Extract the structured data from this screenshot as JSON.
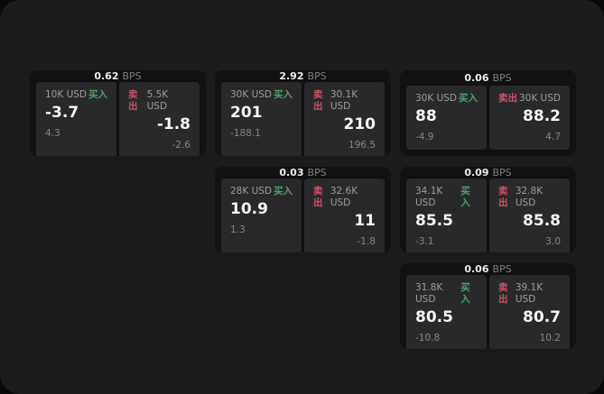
{
  "labels": {
    "buy": "买入",
    "sell": "卖出",
    "bps_suffix": "BPS"
  },
  "colors": {
    "panel_background": "#1b1b1d",
    "card_background": "#111113",
    "quote_panel_background": "#29292b",
    "buy_green": "#4fa06b",
    "sell_red": "#d34f66",
    "primary_text": "#f5f5f5",
    "secondary_text": "#8f8f8f"
  },
  "cards": [
    {
      "bps": "0.62",
      "buy": {
        "amount": "10K USD",
        "value": "-3.7",
        "change": "4.3"
      },
      "sell": {
        "amount": "5.5K USD",
        "value": "-1.8",
        "change": "-2.6"
      }
    },
    {
      "bps": "2.92",
      "buy": {
        "amount": "30K USD",
        "value": "201",
        "change": "-188.1"
      },
      "sell": {
        "amount": "30.1K USD",
        "value": "210",
        "change": "196.5"
      }
    },
    {
      "bps": "0.06",
      "buy": {
        "amount": "30K USD",
        "value": "88",
        "change": "-4.9"
      },
      "sell": {
        "amount": "30K USD",
        "value": "88.2",
        "change": "4.7"
      }
    },
    {
      "bps": "0.03",
      "buy": {
        "amount": "28K USD",
        "value": "10.9",
        "change": "1.3"
      },
      "sell": {
        "amount": "32.6K USD",
        "value": "11",
        "change": "-1.8"
      }
    },
    {
      "bps": "0.09",
      "buy": {
        "amount": "34.1K USD",
        "value": "85.5",
        "change": "-3.1"
      },
      "sell": {
        "amount": "32.8K USD",
        "value": "85.8",
        "change": "3.0"
      }
    },
    {
      "bps": "0.06",
      "buy": {
        "amount": "31.8K USD",
        "value": "80.5",
        "change": "-10.8"
      },
      "sell": {
        "amount": "39.1K USD",
        "value": "80.7",
        "change": "10.2"
      }
    }
  ]
}
